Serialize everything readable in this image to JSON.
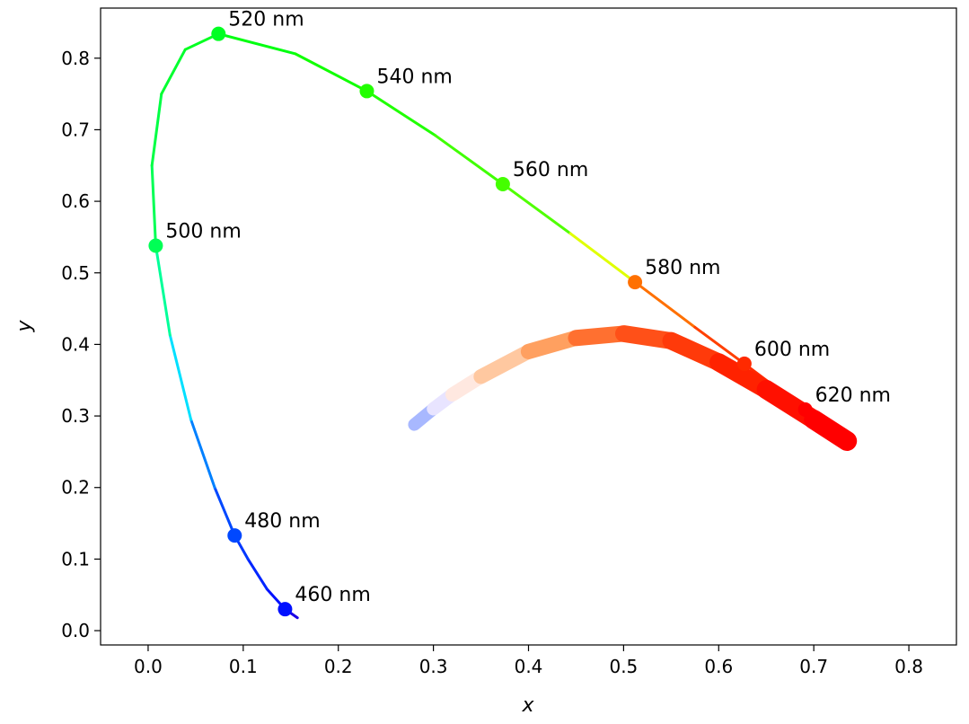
{
  "chart_data": {
    "type": "line",
    "title": "",
    "xlabel": "x",
    "ylabel": "y",
    "xlim": [
      -0.05,
      0.85
    ],
    "ylim": [
      -0.02,
      0.87
    ],
    "grid": false,
    "xticks": [
      "0.0",
      "0.1",
      "0.2",
      "0.3",
      "0.4",
      "0.5",
      "0.6",
      "0.7",
      "0.8"
    ],
    "yticks": [
      "0.0",
      "0.1",
      "0.2",
      "0.3",
      "0.4",
      "0.5",
      "0.6",
      "0.7",
      "0.8"
    ],
    "spectral_locus": {
      "points": [
        {
          "x": 0.157,
          "y": 0.018,
          "color": "#1a00e6"
        },
        {
          "x": 0.144,
          "y": 0.03,
          "color": "#0010ff"
        },
        {
          "x": 0.125,
          "y": 0.058,
          "color": "#0025ff"
        },
        {
          "x": 0.105,
          "y": 0.1,
          "color": "#0038ff"
        },
        {
          "x": 0.091,
          "y": 0.133,
          "color": "#0048ff"
        },
        {
          "x": 0.07,
          "y": 0.2,
          "color": "#0080ff"
        },
        {
          "x": 0.045,
          "y": 0.295,
          "color": "#00e0ff"
        },
        {
          "x": 0.023,
          "y": 0.413,
          "color": "#00ff99"
        },
        {
          "x": 0.008,
          "y": 0.538,
          "color": "#00ff55"
        },
        {
          "x": 0.004,
          "y": 0.65,
          "color": "#00ff44"
        },
        {
          "x": 0.014,
          "y": 0.75,
          "color": "#00ff30"
        },
        {
          "x": 0.039,
          "y": 0.812,
          "color": "#00ff20"
        },
        {
          "x": 0.074,
          "y": 0.834,
          "color": "#00ff10"
        },
        {
          "x": 0.155,
          "y": 0.806,
          "color": "#10ff00"
        },
        {
          "x": 0.23,
          "y": 0.754,
          "color": "#20ff00"
        },
        {
          "x": 0.302,
          "y": 0.692,
          "color": "#40ff00"
        },
        {
          "x": 0.373,
          "y": 0.624,
          "color": "#50ff00"
        },
        {
          "x": 0.444,
          "y": 0.555,
          "color": "#e0ff00"
        },
        {
          "x": 0.512,
          "y": 0.487,
          "color": "#ff7000"
        },
        {
          "x": 0.575,
          "y": 0.424,
          "color": "#ff4000"
        },
        {
          "x": 0.627,
          "y": 0.373,
          "color": "#ff2a00"
        },
        {
          "x": 0.665,
          "y": 0.335,
          "color": "#ff1a00"
        },
        {
          "x": 0.691,
          "y": 0.309,
          "color": "#ff0000"
        },
        {
          "x": 0.735,
          "y": 0.265,
          "color": "#ff0000"
        }
      ]
    },
    "wavelength_markers": [
      {
        "label": "460 nm",
        "x": 0.144,
        "y": 0.03,
        "color": "#0010ff"
      },
      {
        "label": "480 nm",
        "x": 0.091,
        "y": 0.133,
        "color": "#0048ff"
      },
      {
        "label": "500 nm",
        "x": 0.008,
        "y": 0.538,
        "color": "#00ff55"
      },
      {
        "label": "520 nm",
        "x": 0.074,
        "y": 0.834,
        "color": "#00ff22"
      },
      {
        "label": "540 nm",
        "x": 0.23,
        "y": 0.754,
        "color": "#22ff00"
      },
      {
        "label": "560 nm",
        "x": 0.373,
        "y": 0.624,
        "color": "#44ff00"
      },
      {
        "label": "580 nm",
        "x": 0.512,
        "y": 0.487,
        "color": "#ff7000"
      },
      {
        "label": "600 nm",
        "x": 0.627,
        "y": 0.373,
        "color": "#ff2a00"
      },
      {
        "label": "620 nm",
        "x": 0.691,
        "y": 0.309,
        "color": "#ff0000"
      }
    ],
    "planckian_locus": {
      "points": [
        {
          "x": 0.28,
          "y": 0.288,
          "color": "#a8b8ff"
        },
        {
          "x": 0.3,
          "y": 0.31,
          "color": "#e8e4ff"
        },
        {
          "x": 0.32,
          "y": 0.33,
          "color": "#ffe8e0"
        },
        {
          "x": 0.35,
          "y": 0.355,
          "color": "#ffc8a0"
        },
        {
          "x": 0.4,
          "y": 0.39,
          "color": "#ffa060"
        },
        {
          "x": 0.45,
          "y": 0.409,
          "color": "#ff7030"
        },
        {
          "x": 0.5,
          "y": 0.415,
          "color": "#ff5018"
        },
        {
          "x": 0.55,
          "y": 0.405,
          "color": "#ff3a0a"
        },
        {
          "x": 0.6,
          "y": 0.375,
          "color": "#ff2200"
        },
        {
          "x": 0.65,
          "y": 0.337,
          "color": "#ff1000"
        },
        {
          "x": 0.7,
          "y": 0.295,
          "color": "#ff0000"
        },
        {
          "x": 0.735,
          "y": 0.265,
          "color": "#ff0000"
        }
      ]
    }
  }
}
